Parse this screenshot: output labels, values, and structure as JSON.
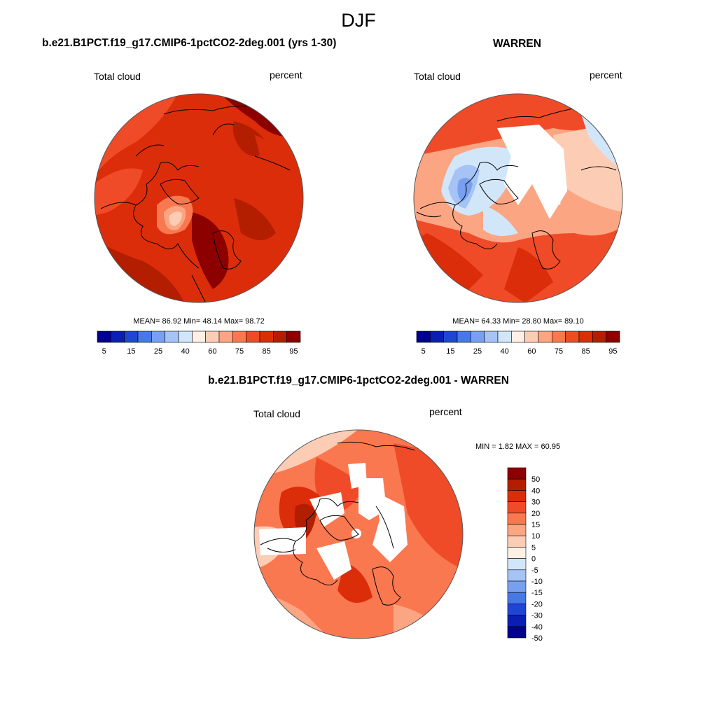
{
  "figure_title": "DJF",
  "panels": [
    {
      "title": "b.e21.B1PCT.f19_g17.CMIP6-1pctCO2-2deg.001 (yrs 1-30)",
      "left_label": "Total cloud",
      "right_label": "percent",
      "stats": "MEAN=  86.92  Min=  48.14  Max=  98.72"
    },
    {
      "title": "WARREN",
      "left_label": "Total cloud",
      "right_label": "percent",
      "stats": "MEAN=  64.33  Min=  28.80  Max=  89.10"
    },
    {
      "title": "b.e21.B1PCT.f19_g17.CMIP6-1pctCO2-2deg.001 - WARREN",
      "left_label": "Total cloud",
      "right_label": "percent",
      "stats": "MIN =   1.82 MAX =  60.95"
    }
  ],
  "colorbar_abs": {
    "colors": [
      "#00008c",
      "#0a1eb4",
      "#1e46d2",
      "#4678e6",
      "#78a0f0",
      "#a5c3f5",
      "#d2e6fa",
      "#fff0e6",
      "#fccdb4",
      "#fca582",
      "#fa7850",
      "#f04b28",
      "#dc2d0a",
      "#b41e00",
      "#8c0000"
    ],
    "ticks": [
      "5",
      "15",
      "25",
      "40",
      "60",
      "75",
      "85",
      "95"
    ]
  },
  "colorbar_diff": {
    "colors": [
      "#8c0000",
      "#b41e00",
      "#dc2d0a",
      "#f04b28",
      "#fa7850",
      "#fca582",
      "#fccdb4",
      "#fff0e6",
      "#d2e6fa",
      "#a5c3f5",
      "#78a0f0",
      "#4678e6",
      "#1e46d2",
      "#0a1eb4",
      "#00008c"
    ],
    "ticks": [
      "50",
      "40",
      "30",
      "20",
      "15",
      "10",
      "5",
      "0",
      "-5",
      "-10",
      "-15",
      "-20",
      "-30",
      "-40",
      "-50"
    ]
  }
}
